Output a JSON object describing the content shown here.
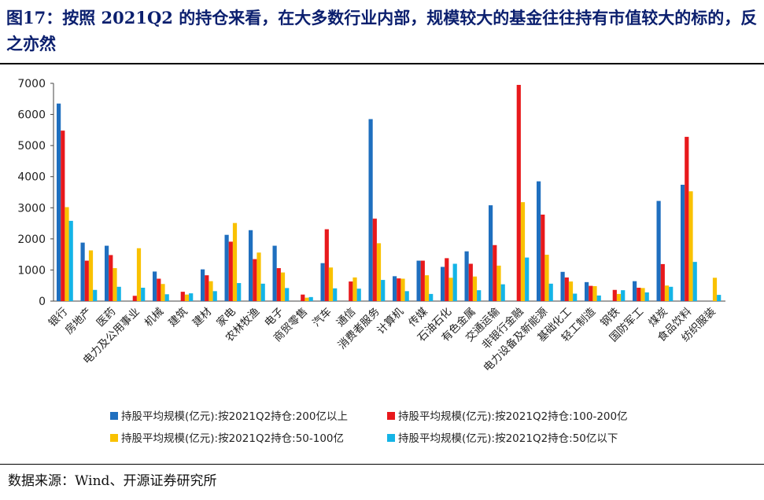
{
  "title": "图17：按照 2021Q2 的持仓来看，在大多数行业内部，规模较大的基金往往持有市值较大的标的，反之亦然",
  "source": "数据来源：Wind、开源证券研究所",
  "colors": {
    "s1": "#1f6fbf",
    "s2": "#e8191c",
    "s3": "#f9c100",
    "s4": "#14b4e6",
    "title": "#0b1f6e"
  },
  "chart_data": {
    "type": "bar",
    "ylim": [
      0,
      7000
    ],
    "yticks": [
      0,
      1000,
      2000,
      3000,
      4000,
      5000,
      6000,
      7000
    ],
    "grid": false,
    "legend_position": "bottom",
    "categories": [
      "银行",
      "房地产",
      "医药",
      "电力及公用事业",
      "机械",
      "建筑",
      "建材",
      "家电",
      "农林牧渔",
      "电子",
      "商贸零售",
      "汽车",
      "通信",
      "消费者服务",
      "计算机",
      "传媒",
      "石油石化",
      "有色金属",
      "交通运输",
      "非银行金融",
      "电力设备及新能源",
      "基础化工",
      "轻工制造",
      "钢铁",
      "国防军工",
      "煤炭",
      "食品饮料",
      "纺织服装"
    ],
    "series": [
      {
        "name": "持股平均规模(亿元):按2021Q2持仓:200亿以上",
        "values": [
          6350,
          1880,
          1780,
          0,
          950,
          0,
          1020,
          2130,
          2280,
          1780,
          0,
          1220,
          0,
          5850,
          800,
          1300,
          1100,
          1600,
          3080,
          0,
          3850,
          940,
          610,
          0,
          640,
          3220,
          3740,
          0
        ]
      },
      {
        "name": "持股平均规模(亿元):按2021Q2持仓:100-200亿",
        "values": [
          5480,
          1300,
          1480,
          170,
          720,
          300,
          830,
          1910,
          1350,
          1060,
          210,
          2310,
          630,
          2650,
          730,
          1300,
          1380,
          1200,
          1800,
          6950,
          2780,
          760,
          490,
          360,
          430,
          1190,
          5280,
          0
        ]
      },
      {
        "name": "持股平均规模(亿元):按2021Q2持仓:50-100亿",
        "values": [
          3020,
          1630,
          1060,
          1700,
          550,
          210,
          640,
          2510,
          1560,
          920,
          110,
          1080,
          760,
          1860,
          720,
          830,
          750,
          790,
          1140,
          3180,
          1490,
          630,
          480,
          230,
          420,
          500,
          3530,
          750
        ]
      },
      {
        "name": "持股平均规模(亿元):按2021Q2持仓:50亿以下",
        "values": [
          2580,
          360,
          460,
          430,
          220,
          250,
          320,
          580,
          560,
          420,
          130,
          410,
          400,
          680,
          320,
          230,
          1200,
          350,
          540,
          1400,
          560,
          240,
          180,
          350,
          280,
          460,
          1260,
          200
        ]
      }
    ]
  }
}
